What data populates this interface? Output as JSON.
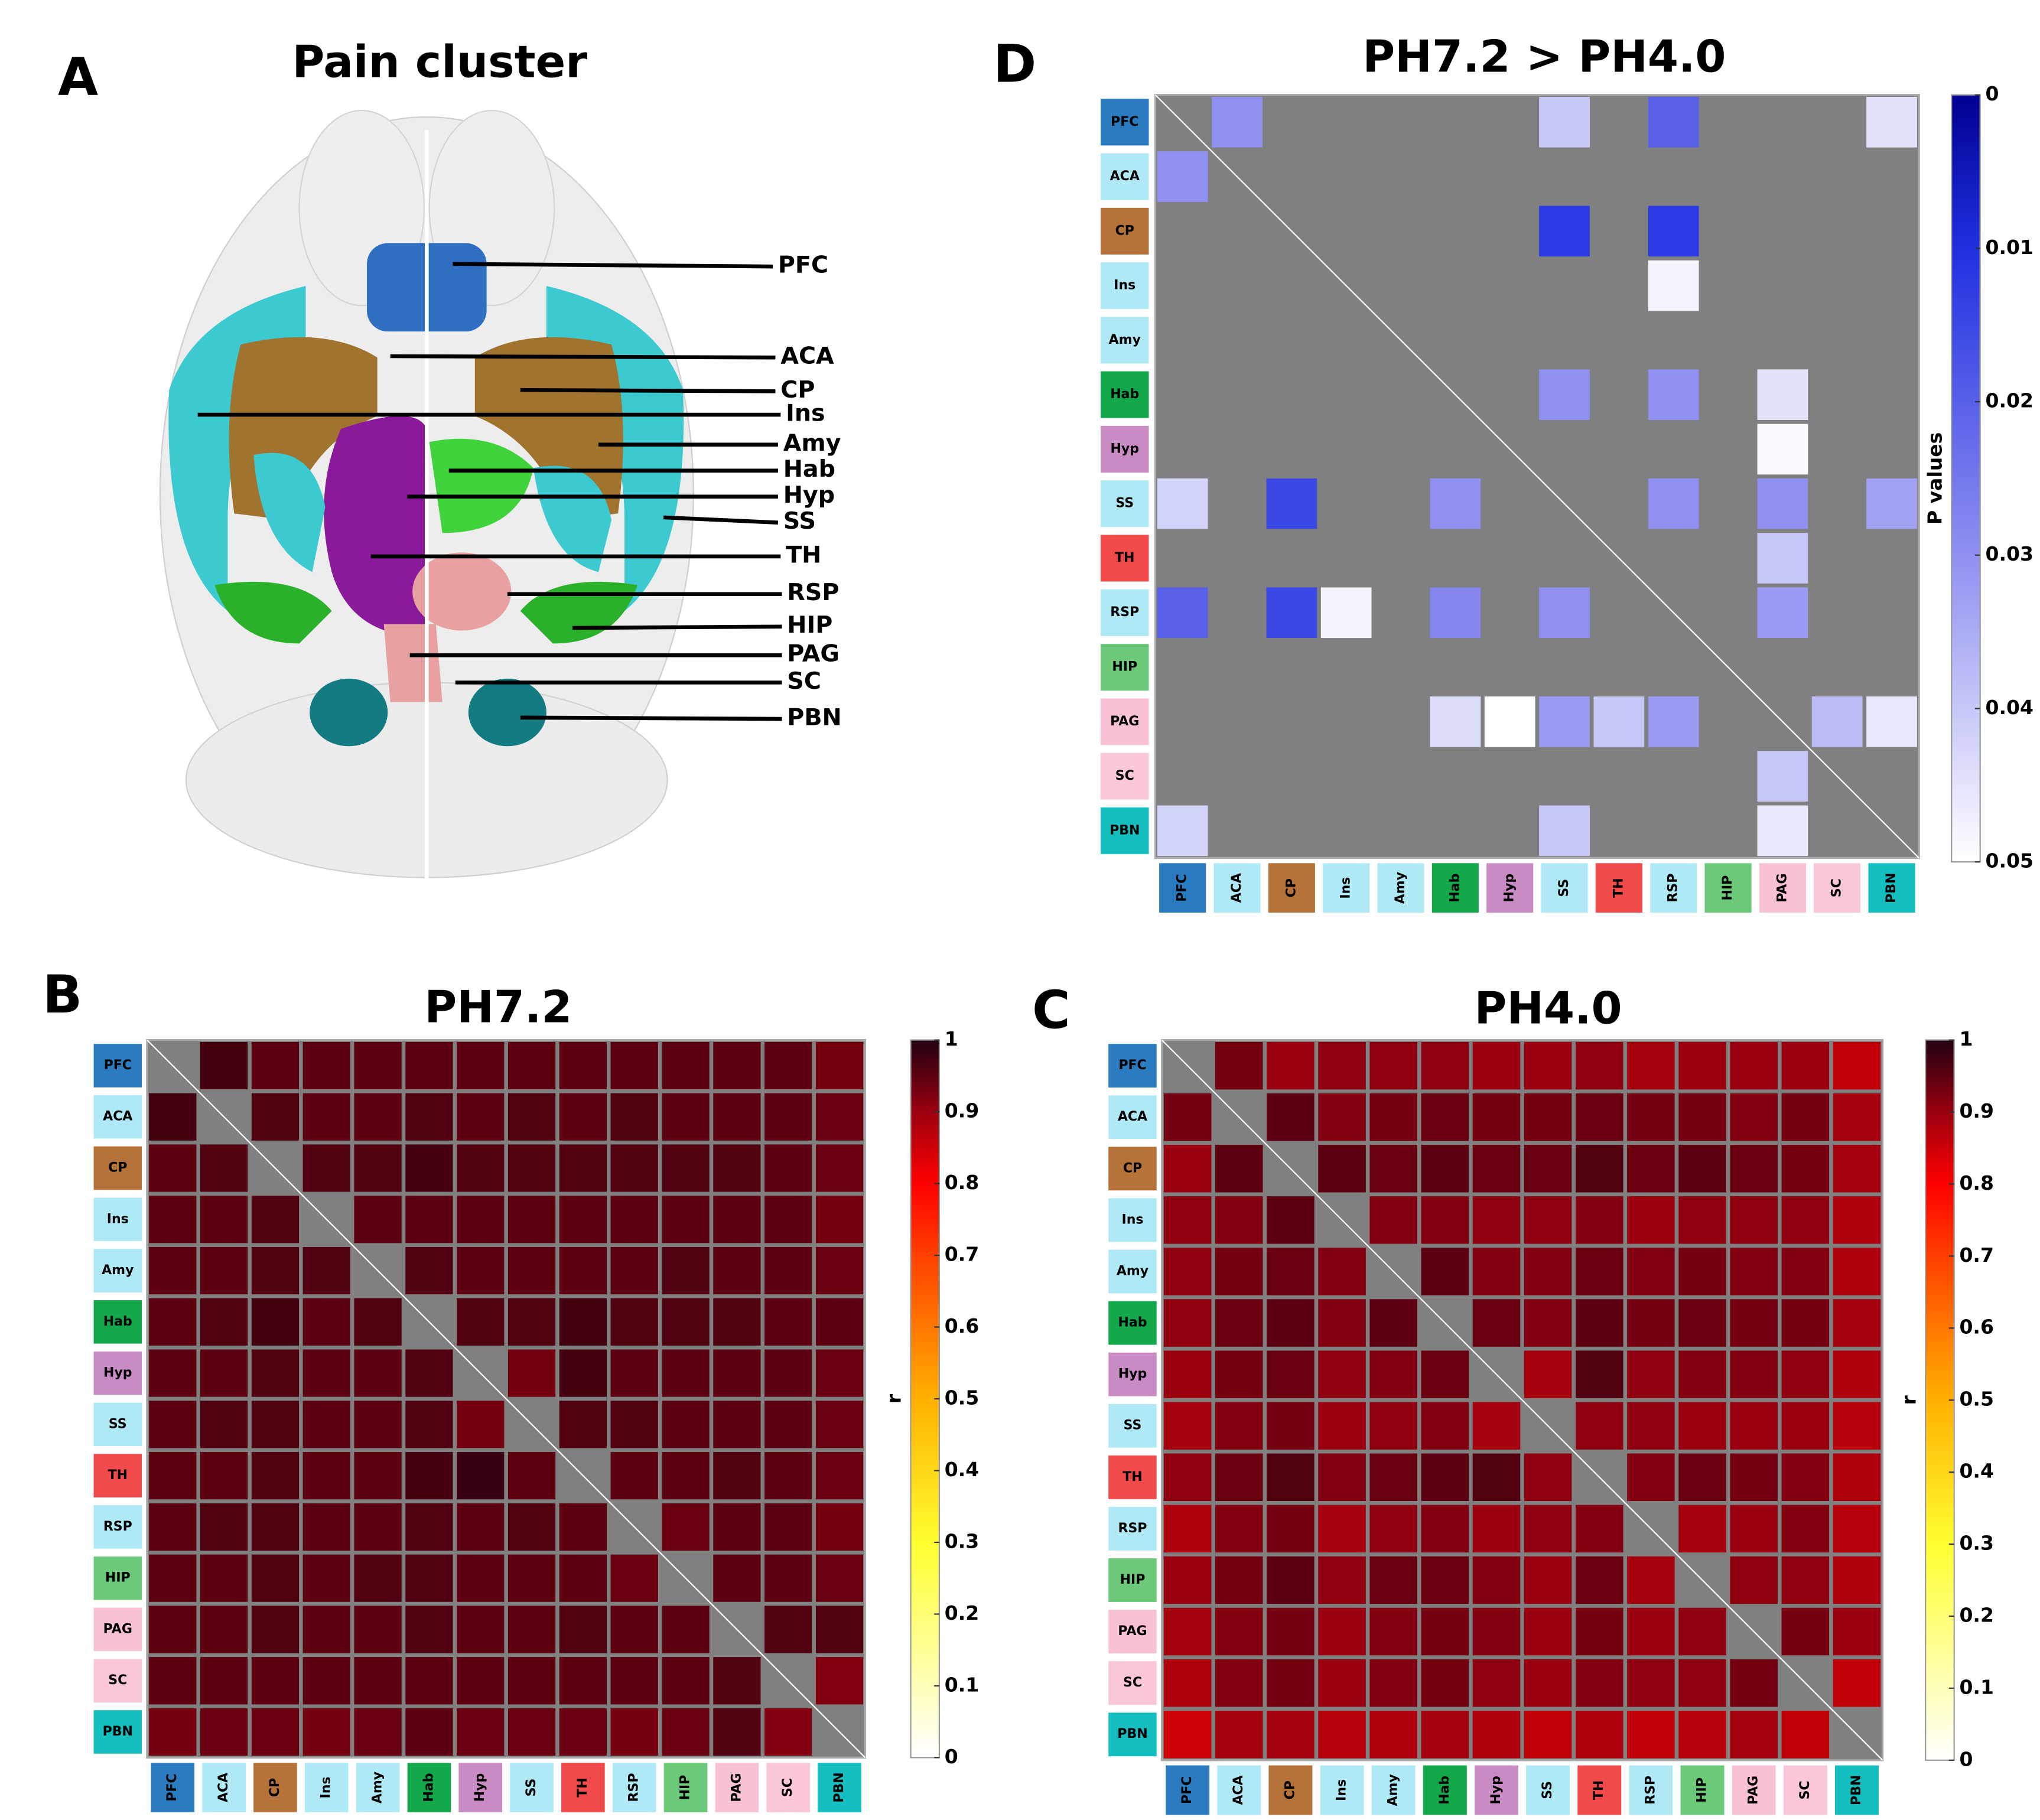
{
  "chart_data": [
    {
      "panel": "A",
      "type": "diagram",
      "title": "Pain cluster",
      "labels": [
        "PFC",
        "ACA",
        "CP",
        "Ins",
        "Amy",
        "Hab",
        "Hyp",
        "SS",
        "TH",
        "RSP",
        "HIP",
        "PAG",
        "SC",
        "PBN"
      ]
    },
    {
      "panel": "B",
      "type": "heatmap",
      "title": "PH7.2",
      "colormap": "hot",
      "rows": [
        "PFC",
        "ACA",
        "CP",
        "Ins",
        "Amy",
        "Hab",
        "Hyp",
        "SS",
        "TH",
        "RSP",
        "HIP",
        "PAG",
        "SC",
        "PBN"
      ],
      "columns": [
        "PFC",
        "ACA",
        "CP",
        "Ins",
        "Amy",
        "Hab",
        "Hyp",
        "SS",
        "TH",
        "RSP",
        "HIP",
        "PAG",
        "SC",
        "PBN"
      ],
      "region_colors": [
        "#2a7bbf",
        "#aee9f5",
        "#b5733a",
        "#aee9f5",
        "#aee9f5",
        "#13a84a",
        "#c98bc3",
        "#aee9f5",
        "#f04a4a",
        "#aee9f5",
        "#6cc97a",
        "#f9c2d2",
        "#f9c7d6",
        "#15bfbf"
      ],
      "values": [
        [
          null,
          0.97,
          0.95,
          0.95,
          0.95,
          0.95,
          0.95,
          0.95,
          0.95,
          0.95,
          0.95,
          0.95,
          0.95,
          0.93
        ],
        [
          0.97,
          null,
          0.96,
          0.95,
          0.95,
          0.96,
          0.95,
          0.96,
          0.95,
          0.96,
          0.95,
          0.95,
          0.95,
          0.94
        ],
        [
          0.95,
          0.96,
          null,
          0.96,
          0.96,
          0.97,
          0.96,
          0.96,
          0.96,
          0.96,
          0.96,
          0.96,
          0.95,
          0.94
        ],
        [
          0.95,
          0.95,
          0.96,
          null,
          0.95,
          0.95,
          0.95,
          0.95,
          0.95,
          0.95,
          0.95,
          0.95,
          0.95,
          0.93
        ],
        [
          0.95,
          0.95,
          0.96,
          0.96,
          null,
          0.96,
          0.95,
          0.95,
          0.95,
          0.95,
          0.96,
          0.95,
          0.95,
          0.94
        ],
        [
          0.95,
          0.96,
          0.97,
          0.95,
          0.96,
          null,
          0.96,
          0.96,
          0.97,
          0.96,
          0.96,
          0.96,
          0.95,
          0.95
        ],
        [
          0.95,
          0.95,
          0.96,
          0.95,
          0.95,
          0.96,
          null,
          0.93,
          0.97,
          0.95,
          0.95,
          0.95,
          0.95,
          0.94
        ],
        [
          0.95,
          0.96,
          0.96,
          0.95,
          0.95,
          0.96,
          0.93,
          null,
          0.96,
          0.96,
          0.95,
          0.95,
          0.95,
          0.94
        ],
        [
          0.95,
          0.95,
          0.96,
          0.95,
          0.95,
          0.97,
          0.98,
          0.95,
          null,
          0.95,
          0.95,
          0.96,
          0.95,
          0.94
        ],
        [
          0.95,
          0.96,
          0.96,
          0.95,
          0.95,
          0.96,
          0.95,
          0.96,
          0.95,
          null,
          0.94,
          0.95,
          0.95,
          0.93
        ],
        [
          0.95,
          0.95,
          0.96,
          0.95,
          0.96,
          0.96,
          0.95,
          0.95,
          0.95,
          0.94,
          null,
          0.95,
          0.95,
          0.94
        ],
        [
          0.95,
          0.95,
          0.96,
          0.95,
          0.95,
          0.96,
          0.95,
          0.95,
          0.96,
          0.95,
          0.95,
          null,
          0.96,
          0.96
        ],
        [
          0.95,
          0.95,
          0.95,
          0.95,
          0.95,
          0.95,
          0.95,
          0.95,
          0.95,
          0.95,
          0.95,
          0.96,
          null,
          0.92
        ],
        [
          0.93,
          0.94,
          0.94,
          0.93,
          0.94,
          0.95,
          0.94,
          0.94,
          0.94,
          0.93,
          0.94,
          0.96,
          0.92,
          null
        ]
      ],
      "clim": [
        0,
        1
      ],
      "cticks": [
        0,
        0.1,
        0.2,
        0.3,
        0.4,
        0.5,
        0.6,
        0.7,
        0.8,
        0.9,
        1
      ],
      "colorbar_label": "r"
    },
    {
      "panel": "C",
      "type": "heatmap",
      "title": "PH4.0",
      "colormap": "hot",
      "rows": [
        "PFC",
        "ACA",
        "CP",
        "Ins",
        "Amy",
        "Hab",
        "Hyp",
        "SS",
        "TH",
        "RSP",
        "HIP",
        "PAG",
        "SC",
        "PBN"
      ],
      "columns": [
        "PFC",
        "ACA",
        "CP",
        "Ins",
        "Amy",
        "Hab",
        "Hyp",
        "SS",
        "TH",
        "RSP",
        "HIP",
        "PAG",
        "SC",
        "PBN"
      ],
      "region_colors": [
        "#2a7bbf",
        "#aee9f5",
        "#b5733a",
        "#aee9f5",
        "#aee9f5",
        "#13a84a",
        "#c98bc3",
        "#aee9f5",
        "#f04a4a",
        "#aee9f5",
        "#6cc97a",
        "#f9c2d2",
        "#f9c7d6",
        "#15bfbf"
      ],
      "values": [
        [
          null,
          0.93,
          0.9,
          0.91,
          0.91,
          0.91,
          0.9,
          0.9,
          0.91,
          0.89,
          0.9,
          0.9,
          0.9,
          0.86
        ],
        [
          0.93,
          null,
          0.95,
          0.92,
          0.93,
          0.94,
          0.93,
          0.93,
          0.94,
          0.93,
          0.93,
          0.92,
          0.93,
          0.89
        ],
        [
          0.9,
          0.95,
          null,
          0.95,
          0.94,
          0.95,
          0.94,
          0.94,
          0.96,
          0.94,
          0.95,
          0.94,
          0.93,
          0.89
        ],
        [
          0.91,
          0.92,
          0.95,
          null,
          0.92,
          0.92,
          0.91,
          0.91,
          0.92,
          0.9,
          0.91,
          0.91,
          0.91,
          0.88
        ],
        [
          0.91,
          0.93,
          0.94,
          0.92,
          null,
          0.95,
          0.92,
          0.92,
          0.94,
          0.92,
          0.93,
          0.92,
          0.92,
          0.88
        ],
        [
          0.91,
          0.94,
          0.95,
          0.92,
          0.95,
          null,
          0.94,
          0.92,
          0.95,
          0.93,
          0.94,
          0.93,
          0.93,
          0.89
        ],
        [
          0.9,
          0.93,
          0.94,
          0.91,
          0.92,
          0.94,
          null,
          0.89,
          0.96,
          0.91,
          0.92,
          0.92,
          0.91,
          0.88
        ],
        [
          0.89,
          0.92,
          0.93,
          0.9,
          0.91,
          0.92,
          0.89,
          null,
          0.91,
          0.91,
          0.9,
          0.9,
          0.9,
          0.87
        ],
        [
          0.91,
          0.94,
          0.96,
          0.92,
          0.94,
          0.95,
          0.96,
          0.91,
          null,
          0.92,
          0.94,
          0.93,
          0.92,
          0.88
        ],
        [
          0.88,
          0.92,
          0.93,
          0.89,
          0.91,
          0.92,
          0.9,
          0.91,
          0.92,
          null,
          0.89,
          0.9,
          0.92,
          0.87
        ],
        [
          0.9,
          0.93,
          0.95,
          0.91,
          0.94,
          0.94,
          0.92,
          0.9,
          0.94,
          0.89,
          null,
          0.91,
          0.91,
          0.88
        ],
        [
          0.89,
          0.92,
          0.93,
          0.9,
          0.92,
          0.93,
          0.92,
          0.9,
          0.93,
          0.9,
          0.91,
          null,
          0.93,
          0.9
        ],
        [
          0.88,
          0.92,
          0.93,
          0.9,
          0.92,
          0.93,
          0.91,
          0.9,
          0.92,
          0.91,
          0.91,
          0.93,
          null,
          0.86
        ],
        [
          0.85,
          0.89,
          0.89,
          0.87,
          0.88,
          0.89,
          0.88,
          0.86,
          0.88,
          0.86,
          0.87,
          0.89,
          0.86,
          null
        ]
      ],
      "clim": [
        0,
        1
      ],
      "cticks": [
        0,
        0.1,
        0.2,
        0.3,
        0.4,
        0.5,
        0.6,
        0.7,
        0.8,
        0.9,
        1
      ],
      "colorbar_label": "r"
    },
    {
      "panel": "D",
      "type": "heatmap",
      "title": "PH7.2 > PH4.0",
      "colormap": "blue",
      "reverse_colorbar": true,
      "rows": [
        "PFC",
        "ACA",
        "CP",
        "Ins",
        "Amy",
        "Hab",
        "Hyp",
        "SS",
        "TH",
        "RSP",
        "HIP",
        "PAG",
        "SC",
        "PBN"
      ],
      "columns": [
        "PFC",
        "ACA",
        "CP",
        "Ins",
        "Amy",
        "Hab",
        "Hyp",
        "SS",
        "TH",
        "RSP",
        "HIP",
        "PAG",
        "SC",
        "PBN"
      ],
      "region_colors": [
        "#2a7bbf",
        "#aee9f5",
        "#b5733a",
        "#aee9f5",
        "#aee9f5",
        "#13a84a",
        "#c98bc3",
        "#aee9f5",
        "#f04a4a",
        "#aee9f5",
        "#6cc97a",
        "#f9c2d2",
        "#f9c7d6",
        "#15bfbf"
      ],
      "values": [
        [
          null,
          0.03,
          null,
          null,
          null,
          null,
          null,
          0.04,
          null,
          0.02,
          null,
          null,
          null,
          0.045
        ],
        [
          0.03,
          null,
          null,
          null,
          null,
          null,
          null,
          null,
          null,
          null,
          null,
          null,
          null,
          null
        ],
        [
          null,
          null,
          null,
          null,
          null,
          null,
          null,
          0.012,
          null,
          0.012,
          null,
          null,
          null,
          null
        ],
        [
          null,
          null,
          null,
          null,
          null,
          null,
          null,
          null,
          null,
          0.048,
          null,
          null,
          null,
          null
        ],
        [
          null,
          null,
          null,
          null,
          null,
          null,
          null,
          null,
          null,
          null,
          null,
          null,
          null,
          null
        ],
        [
          null,
          null,
          null,
          null,
          null,
          null,
          null,
          0.03,
          null,
          0.03,
          null,
          0.045,
          null,
          null
        ],
        [
          null,
          null,
          null,
          null,
          null,
          null,
          null,
          null,
          null,
          null,
          null,
          0.049,
          null,
          null
        ],
        [
          0.042,
          null,
          0.015,
          null,
          null,
          0.03,
          null,
          null,
          null,
          0.03,
          null,
          0.03,
          null,
          0.033
        ],
        [
          null,
          null,
          null,
          null,
          null,
          null,
          null,
          null,
          null,
          null,
          null,
          0.04,
          null,
          null
        ],
        [
          0.02,
          null,
          0.015,
          0.048,
          null,
          0.028,
          null,
          0.03,
          null,
          null,
          null,
          0.032,
          null,
          null
        ],
        [
          null,
          null,
          null,
          null,
          null,
          null,
          null,
          null,
          null,
          null,
          null,
          null,
          null,
          null
        ],
        [
          null,
          null,
          null,
          null,
          null,
          0.044,
          0.05,
          0.032,
          0.04,
          0.032,
          null,
          null,
          0.038,
          0.046
        ],
        [
          null,
          null,
          null,
          null,
          null,
          null,
          null,
          null,
          null,
          null,
          null,
          0.04,
          null,
          null
        ],
        [
          0.042,
          null,
          null,
          null,
          null,
          null,
          null,
          0.04,
          null,
          null,
          null,
          0.046,
          null,
          null
        ]
      ],
      "clim": [
        0,
        0.05
      ],
      "cticks": [
        0,
        0.01,
        0.02,
        0.03,
        0.04,
        0.05
      ],
      "colorbar_label": "P values"
    }
  ]
}
